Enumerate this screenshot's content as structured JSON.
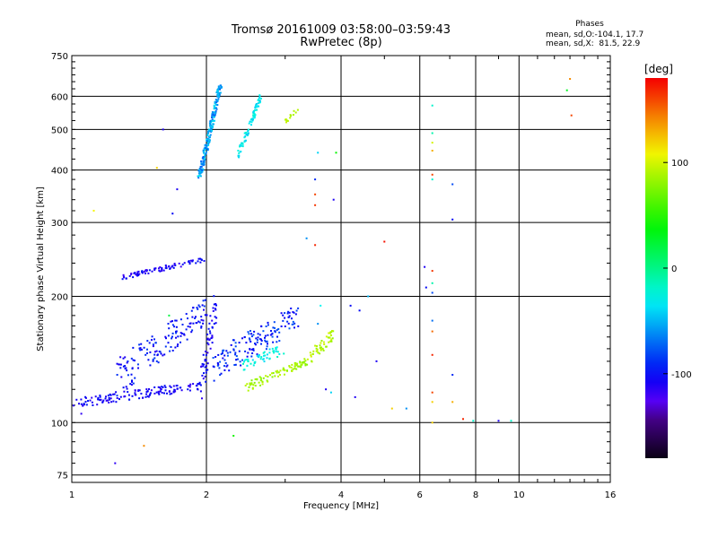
{
  "titles": {
    "line1": "Tromsø 20161009 03:58:00–03:59:43",
    "line2": "RwPretec (8p)"
  },
  "legend": {
    "heading": "Phases",
    "line1": "mean, sd,O:-104.1, 17.7",
    "line2": "mean, sd,X:  81.5, 22.9"
  },
  "colorbar": {
    "unit": "[deg]",
    "ticks": [
      100,
      0,
      -100
    ],
    "range": [
      -180,
      180
    ]
  },
  "chart_data": {
    "type": "scatter",
    "xlabel": "Frequency [MHz]",
    "ylabel": "Stationary phase Virtual Height [km]",
    "xscale": "log",
    "yscale": "log",
    "xlim": [
      1,
      16
    ],
    "ylim": [
      72,
      750
    ],
    "xticks": [
      1,
      2,
      4,
      6,
      8,
      10,
      16
    ],
    "yticks": [
      75,
      100,
      200,
      300,
      400,
      500,
      600,
      750
    ],
    "grid": true,
    "color_variable": "phase [deg]",
    "traces": [
      {
        "f0": 1.0,
        "f1": 1.95,
        "h0": 111,
        "h1": 123,
        "count": 140,
        "phase": [
          -118,
          -95
        ],
        "spread": 3
      },
      {
        "f0": 1.95,
        "f1": 2.1,
        "h0": 124,
        "h1": 190,
        "count": 60,
        "phase": [
          -118,
          -95
        ],
        "spread": 12
      },
      {
        "f0": 1.25,
        "f1": 2.0,
        "h0": 128,
        "h1": 185,
        "count": 150,
        "phase": [
          -112,
          -85
        ],
        "spread": 14
      },
      {
        "f0": 2.05,
        "f1": 3.2,
        "h0": 135,
        "h1": 180,
        "count": 150,
        "phase": [
          -108,
          -75
        ],
        "spread": 12
      },
      {
        "f0": 2.4,
        "f1": 3.0,
        "h0": 137,
        "h1": 150,
        "count": 50,
        "phase": [
          -40,
          -15
        ],
        "spread": 4
      },
      {
        "f0": 2.45,
        "f1": 3.35,
        "h0": 121,
        "h1": 140,
        "count": 90,
        "phase": [
          75,
          95
        ],
        "spread": 3
      },
      {
        "f0": 3.4,
        "f1": 3.85,
        "h0": 142,
        "h1": 162,
        "count": 50,
        "phase": [
          80,
          100
        ],
        "spread": 5
      },
      {
        "f0": 1.3,
        "f1": 1.98,
        "h0": 222,
        "h1": 245,
        "count": 80,
        "phase": [
          -120,
          -95
        ],
        "spread": 3
      },
      {
        "f0": 1.93,
        "f1": 2.15,
        "h0": 385,
        "h1": 640,
        "count": 220,
        "phase": [
          -75,
          -35
        ],
        "spread": 4
      },
      {
        "f0": 2.35,
        "f1": 2.65,
        "h0": 430,
        "h1": 600,
        "count": 80,
        "phase": [
          -45,
          -20
        ],
        "spread": 4
      },
      {
        "f0": 3.0,
        "f1": 3.2,
        "h0": 520,
        "h1": 560,
        "count": 14,
        "phase": [
          85,
          100
        ],
        "spread": 3
      }
    ],
    "points": [
      [
        1.6,
        500,
        -110
      ],
      [
        1.12,
        320,
        110
      ],
      [
        1.55,
        405,
        120
      ],
      [
        1.68,
        315,
        -100
      ],
      [
        1.72,
        360,
        -110
      ],
      [
        1.65,
        180,
        20
      ],
      [
        1.05,
        105,
        -115
      ],
      [
        1.25,
        80,
        -115
      ],
      [
        1.45,
        88,
        140
      ],
      [
        2.3,
        93,
        45
      ],
      [
        3.5,
        380,
        -90
      ],
      [
        3.5,
        350,
        160
      ],
      [
        3.5,
        330,
        165
      ],
      [
        3.55,
        440,
        -40
      ],
      [
        3.35,
        275,
        -60
      ],
      [
        3.5,
        265,
        170
      ],
      [
        3.85,
        340,
        -110
      ],
      [
        3.9,
        440,
        40
      ],
      [
        3.6,
        190,
        -30
      ],
      [
        3.55,
        172,
        -60
      ],
      [
        3.7,
        120,
        -110
      ],
      [
        3.8,
        118,
        -40
      ],
      [
        4.4,
        185,
        -100
      ],
      [
        4.2,
        190,
        -100
      ],
      [
        4.6,
        200,
        -50
      ],
      [
        4.3,
        115,
        -110
      ],
      [
        4.8,
        140,
        -110
      ],
      [
        5.0,
        270,
        175
      ],
      [
        5.2,
        108,
        120
      ],
      [
        5.6,
        108,
        -60
      ],
      [
        6.15,
        235,
        -110
      ],
      [
        6.2,
        210,
        -100
      ],
      [
        6.4,
        230,
        165
      ],
      [
        6.4,
        215,
        -10
      ],
      [
        6.4,
        204,
        -80
      ],
      [
        6.4,
        570,
        -20
      ],
      [
        6.4,
        490,
        -10
      ],
      [
        6.4,
        465,
        100
      ],
      [
        6.4,
        445,
        130
      ],
      [
        6.4,
        390,
        160
      ],
      [
        6.4,
        380,
        -20
      ],
      [
        6.4,
        175,
        -70
      ],
      [
        6.4,
        165,
        150
      ],
      [
        6.4,
        145,
        170
      ],
      [
        6.4,
        118,
        160
      ],
      [
        6.4,
        112,
        120
      ],
      [
        6.4,
        100,
        120
      ],
      [
        7.1,
        370,
        -80
      ],
      [
        7.1,
        305,
        -100
      ],
      [
        7.1,
        130,
        -90
      ],
      [
        7.1,
        112,
        130
      ],
      [
        7.5,
        102,
        170
      ],
      [
        7.9,
        101,
        -20
      ],
      [
        9.0,
        101,
        -110
      ],
      [
        9.6,
        101,
        -20
      ],
      [
        12.8,
        620,
        30
      ],
      [
        13.0,
        660,
        140
      ],
      [
        13.1,
        540,
        160
      ]
    ]
  }
}
